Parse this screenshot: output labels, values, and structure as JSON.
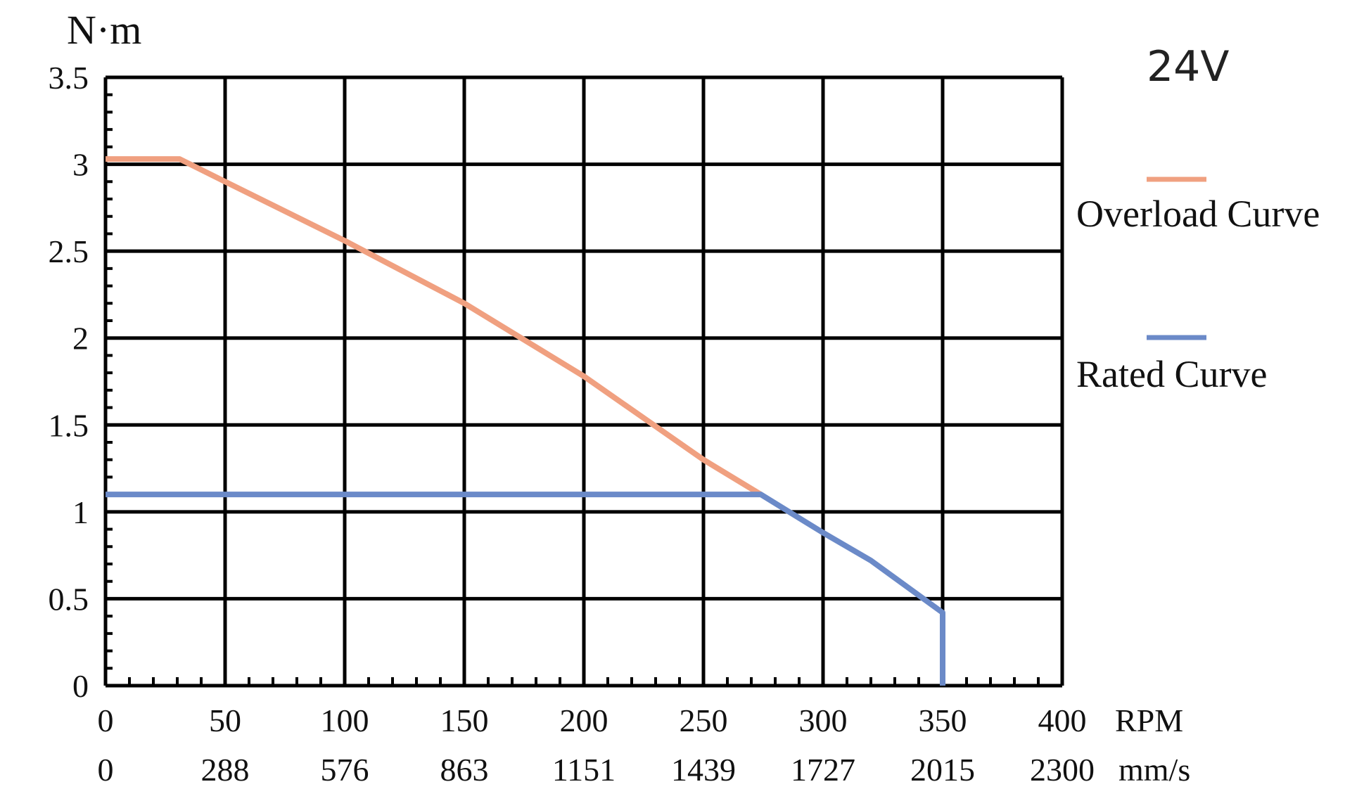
{
  "chart_data": {
    "type": "line",
    "ylabel": "N·m",
    "voltage_label": "24V",
    "x_unit_rpm": "RPM",
    "x_unit_speed": "mm/s",
    "xlim": [
      0,
      400
    ],
    "ylim": [
      0,
      3.5
    ],
    "x_ticks": [
      0,
      50,
      100,
      150,
      200,
      250,
      300,
      350,
      400
    ],
    "x_tick_labels": [
      "0",
      "50",
      "100",
      "150",
      "200",
      "250",
      "300",
      "350",
      "400"
    ],
    "x_speed_labels": [
      "0",
      "288",
      "576",
      "863",
      "1151",
      "1439",
      "1727",
      "2015",
      "2300"
    ],
    "y_ticks": [
      0,
      0.5,
      1,
      1.5,
      2,
      2.5,
      3,
      3.5
    ],
    "y_tick_labels": [
      "0",
      "0.5",
      "1",
      "1.5",
      "2",
      "2.5",
      "3",
      "3.5"
    ],
    "grid": true,
    "legend_position": "right",
    "series": [
      {
        "name": "Overload Curve",
        "color": "#f0a080",
        "x": [
          0,
          31,
          50,
          100,
          150,
          200,
          250,
          274
        ],
        "y": [
          3.03,
          3.03,
          2.9,
          2.56,
          2.2,
          1.78,
          1.3,
          1.1
        ]
      },
      {
        "name": "Rated Curve",
        "color": "#6b8ac8",
        "x": [
          0,
          274,
          300,
          320,
          350,
          350
        ],
        "y": [
          1.1,
          1.1,
          0.88,
          0.72,
          0.42,
          0
        ]
      }
    ]
  }
}
